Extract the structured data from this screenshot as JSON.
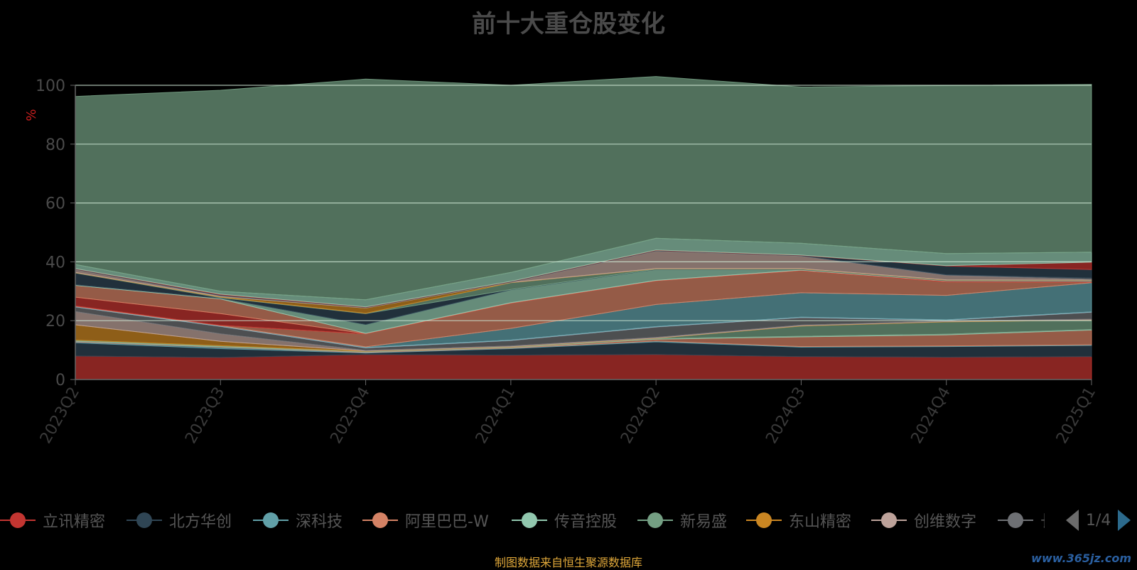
{
  "title": "前十大重仓股变化",
  "chart_data": {
    "type": "area",
    "stacked": true,
    "x": [
      "2023Q2",
      "2023Q3",
      "2023Q4",
      "2024Q1",
      "2024Q2",
      "2024Q3",
      "2024Q4",
      "2025Q1"
    ],
    "ylabel": "%",
    "ylim": [
      0,
      100
    ],
    "yticks": [
      0,
      20,
      40,
      60,
      80,
      100
    ],
    "grid": true,
    "legend_position": "bottom",
    "series": [
      {
        "name": "立讯精密",
        "color": "#c23531",
        "values": [
          8.0,
          7.5,
          8.5,
          8.3,
          8.5,
          7.8,
          7.6,
          7.8
        ]
      },
      {
        "name": "北方华创",
        "color": "#2f4554",
        "values": [
          4.5,
          3.0,
          0.5,
          2.2,
          4.3,
          3.2,
          3.6,
          3.8
        ]
      },
      {
        "name": "深科技",
        "color": "#61a0a8",
        "values": [
          0.3,
          0.5,
          0.2,
          0.2,
          0.3,
          0.2,
          0.2,
          0.2
        ]
      },
      {
        "name": "阿里巴巴-W",
        "color": "#d48265",
        "values": [
          0.2,
          0.1,
          0.2,
          0.2,
          0.6,
          3.3,
          3.8,
          5.0
        ]
      },
      {
        "name": "传音控股",
        "color": "#91c7ae",
        "values": [
          0.2,
          0.2,
          0.1,
          0.1,
          0.2,
          0.2,
          0.2,
          0.2
        ]
      },
      {
        "name": "新易盛",
        "color": "#749f83",
        "values": [
          0.2,
          0.2,
          0.1,
          0.1,
          0.1,
          3.5,
          4.2,
          3.2
        ]
      },
      {
        "name": "东山精密",
        "color": "#ca8622",
        "values": [
          5.2,
          1.5,
          0.1,
          0.1,
          0.1,
          0.1,
          0.1,
          0.1
        ]
      },
      {
        "name": "创维数字",
        "color": "#bda29a",
        "values": [
          4.5,
          2.5,
          0.2,
          0.2,
          0.2,
          0.2,
          0.2,
          0.2
        ]
      },
      {
        "name": "长",
        "color": "#6e7074",
        "values": [
          1.5,
          2.5,
          0.8,
          1.8,
          3.5,
          2.5,
          0.2,
          2.3
        ]
      },
      {
        "name": "",
        "color": "#546570",
        "values": [
          0.1,
          0.1,
          0.1,
          0.1,
          0.1,
          0.1,
          0.1,
          0.1
        ]
      },
      {
        "name": "",
        "color": "#c4ccd3",
        "values": [
          0.1,
          0.1,
          0.1,
          0.1,
          0.1,
          0.1,
          0.1,
          0.1
        ]
      },
      {
        "name": "",
        "color": "#61a0a8",
        "values": [
          0.1,
          0.1,
          0.2,
          4.0,
          7.5,
          8.3,
          8.3,
          9.9
        ]
      },
      {
        "name": "",
        "color": "#d48265",
        "values": [
          0.1,
          0.1,
          4.4,
          8.5,
          8.0,
          7.5,
          4.6,
          0.2
        ]
      },
      {
        "name": "",
        "color": "#c23531",
        "values": [
          3.0,
          4.0,
          0.1,
          0.1,
          0.1,
          0.1,
          0.2,
          0.2
        ]
      },
      {
        "name": "",
        "color": "#d48265",
        "values": [
          4.0,
          5.0,
          0.1,
          0.1,
          0.1,
          0.1,
          0.1,
          0.1
        ]
      },
      {
        "name": "",
        "color": "#91c7ae",
        "values": [
          0.2,
          0.2,
          3.0,
          4.4,
          3.7,
          0.2,
          0.1,
          0.1
        ]
      },
      {
        "name": "",
        "color": "#2f4554",
        "values": [
          4.0,
          0.2,
          3.7,
          0.1,
          0.1,
          0.1,
          0.1,
          0.1
        ]
      },
      {
        "name": "",
        "color": "#749f83",
        "values": [
          0.1,
          0.2,
          0.1,
          2.3,
          0.1,
          0.1,
          0.1,
          0.1
        ]
      },
      {
        "name": "",
        "color": "#ca8622",
        "values": [
          0.1,
          0.2,
          1.8,
          0.1,
          0.1,
          0.1,
          0.1,
          0.1
        ]
      },
      {
        "name": "",
        "color": "#bda29a",
        "values": [
          1.0,
          0.2,
          0.1,
          0.1,
          6.0,
          4.3,
          1.5,
          0.2
        ]
      },
      {
        "name": "",
        "color": "#6e7074",
        "values": [
          0.1,
          0.2,
          0.1,
          0.1,
          0.1,
          0.1,
          0.2,
          0.5
        ]
      },
      {
        "name": "",
        "color": "#2f4554",
        "values": [
          0.1,
          0.2,
          0.1,
          0.1,
          0.1,
          0.1,
          3.0,
          2.9
        ]
      },
      {
        "name": "",
        "color": "#c23531",
        "values": [
          0.1,
          0.2,
          0.1,
          0.1,
          0.1,
          0.1,
          0.1,
          2.5
        ]
      },
      {
        "name": "",
        "color": "#91c7ae",
        "values": [
          1.4,
          1.0,
          2.4,
          3.0,
          4.0,
          4.0,
          4.1,
          3.4
        ]
      },
      {
        "name": "",
        "color": "#749f83",
        "values": [
          57.1,
          68.3,
          75.0,
          63.6,
          55.0,
          53.1,
          57.1,
          57.0
        ]
      }
    ]
  },
  "legend": {
    "items": [
      {
        "label": "立讯精密",
        "color": "#c23531"
      },
      {
        "label": "北方华创",
        "color": "#2f4554"
      },
      {
        "label": "深科技",
        "color": "#61a0a8"
      },
      {
        "label": "阿里巴巴-W",
        "color": "#d48265"
      },
      {
        "label": "传音控股",
        "color": "#91c7ae"
      },
      {
        "label": "新易盛",
        "color": "#749f83"
      },
      {
        "label": "东山精密",
        "color": "#ca8622"
      },
      {
        "label": "创维数字",
        "color": "#bda29a"
      },
      {
        "label": "长",
        "color": "#6e7074"
      }
    ],
    "page_text": "1/4"
  },
  "source_text": "制图数据来自恒生聚源数据库",
  "watermark_text": "www.365jz.com"
}
